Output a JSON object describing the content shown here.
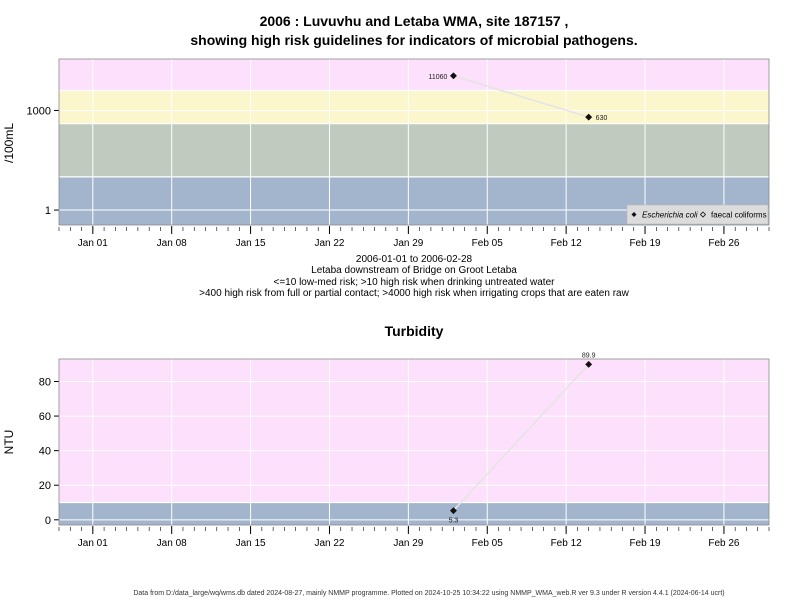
{
  "chart_data": [
    {
      "type": "line",
      "title_line1": "2006 : Luvuvhu and Letaba WMA, site 187157 ,",
      "title_line2": "showing high risk guidelines for indicators of microbial pathogens.",
      "ylabel": "/100mL",
      "y_scale": "log",
      "y_ticks": [
        {
          "value": 1,
          "label": "1"
        },
        {
          "value": 1000,
          "label": "1000"
        }
      ],
      "x_ticks": [
        "Jan 01",
        "Jan 08",
        "Jan 15",
        "Jan 22",
        "Jan 29",
        "Feb 05",
        "Feb 12",
        "Feb 19",
        "Feb 26"
      ],
      "x_range": [
        "2005-12-29",
        "2006-03-02"
      ],
      "risk_bands": [
        {
          "upper": 10,
          "color": "#a3b4cd"
        },
        {
          "upper": 400,
          "color": "#c1cabe"
        },
        {
          "upper": 4000,
          "color": "#fbf6cc"
        },
        {
          "upper": null,
          "color": "#fde0fb"
        }
      ],
      "series": [
        {
          "name": "Escherichia coli",
          "points": [
            {
              "date": "2006-02-02",
              "value": 11060,
              "label": "11060"
            },
            {
              "date": "2006-02-14",
              "value": 630,
              "label": "630"
            }
          ]
        }
      ],
      "legend": {
        "position": "bottom-right",
        "entries": [
          {
            "label": "Escherichia coli",
            "italic": true,
            "marker": "filled-diamond"
          },
          {
            "label": "faecal coliforms",
            "italic": false,
            "marker": "open-diamond"
          }
        ]
      },
      "notes": [
        "2006-01-01 to 2006-02-28",
        "Letaba downstream of Bridge on Groot Letaba",
        "<=10 low-med risk; >10 high risk when drinking untreated water",
        ">400 high risk from full or partial contact; >4000 high risk when irrigating crops that are eaten raw"
      ]
    },
    {
      "type": "line",
      "title": "Turbidity",
      "ylabel": "NTU",
      "y_scale": "linear",
      "ylim": [
        -3,
        93
      ],
      "y_ticks": [
        0,
        20,
        40,
        60,
        80
      ],
      "x_ticks": [
        "Jan 01",
        "Jan 08",
        "Jan 15",
        "Jan 22",
        "Jan 29",
        "Feb 05",
        "Feb 12",
        "Feb 19",
        "Feb 26"
      ],
      "x_range": [
        "2005-12-29",
        "2006-03-02"
      ],
      "risk_bands": [
        {
          "upper": 10,
          "color": "#a3b4cd"
        },
        {
          "upper": null,
          "color": "#fde0fb"
        }
      ],
      "series": [
        {
          "points": [
            {
              "date": "2006-02-02",
              "value": 5.3,
              "label": "5.3"
            },
            {
              "date": "2006-02-14",
              "value": 89.9,
              "label": "89.9"
            }
          ]
        }
      ]
    }
  ],
  "footer": "Data from D:/data_large/wq/wms.db dated 2024-08-27, mainly NMMP programme. Plotted on 2024-10-25 10:34:22 using NMMP_WMA_web.R ver 9.3 under R version 4.4.1 (2024-06-14 ucrt)"
}
